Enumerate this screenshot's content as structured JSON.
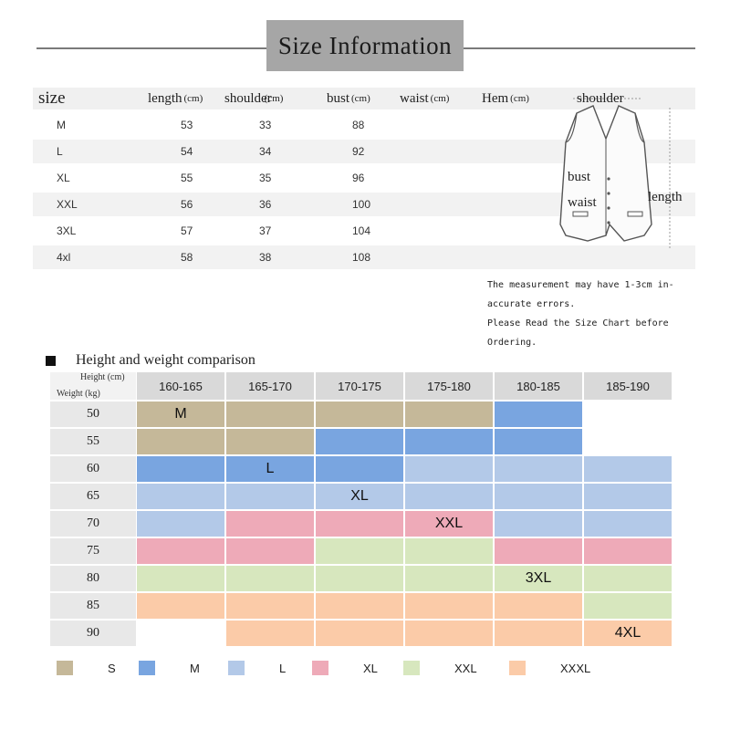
{
  "banner": {
    "title": "Size Information"
  },
  "size_table": {
    "headers": [
      {
        "label": "size",
        "unit": ""
      },
      {
        "label": "length",
        "unit": "(cm)"
      },
      {
        "label": "shoulder",
        "unit": "(cm)"
      },
      {
        "label": "bust",
        "unit": "(cm)"
      },
      {
        "label": "waist",
        "unit": "(cm)"
      },
      {
        "label": "Hem",
        "unit": "(cm)"
      }
    ],
    "rows": [
      {
        "size": "M",
        "length": "53",
        "shoulder": "33",
        "bust": "88"
      },
      {
        "size": "L",
        "length": "54",
        "shoulder": "34",
        "bust": "92"
      },
      {
        "size": "XL",
        "length": "55",
        "shoulder": "35",
        "bust": "96"
      },
      {
        "size": "XXL",
        "length": "56",
        "shoulder": "36",
        "bust": "100"
      },
      {
        "size": "3XL",
        "length": "57",
        "shoulder": "37",
        "bust": "104"
      },
      {
        "size": "4xl",
        "length": "58",
        "shoulder": "38",
        "bust": "108"
      }
    ]
  },
  "diagram": {
    "shoulder": "shoulder",
    "bust": "bust",
    "waist": "waist",
    "length": "length"
  },
  "note": {
    "lines": [
      "The measurement may have 1-3cm in-",
      "accurate errors.",
      "Please Read the Size Chart before",
      "Ordering."
    ]
  },
  "comparison": {
    "title": "Height and weight comparison",
    "height_axis": "Height (cm)",
    "weight_axis": "Weight (kg)",
    "heights": [
      "160-165",
      "165-170",
      "170-175",
      "175-180",
      "180-185",
      "185-190"
    ],
    "weights": [
      "50",
      "55",
      "60",
      "65",
      "70",
      "75",
      "80",
      "85",
      "90"
    ],
    "grid": [
      [
        "S",
        "S",
        "S",
        "S",
        "M",
        ""
      ],
      [
        "S",
        "S",
        "M",
        "M",
        "M",
        ""
      ],
      [
        "M",
        "M",
        "M",
        "L",
        "L",
        "L"
      ],
      [
        "L",
        "L",
        "L",
        "L",
        "L",
        "L"
      ],
      [
        "L",
        "XL",
        "XL",
        "XL",
        "L",
        "L"
      ],
      [
        "XL",
        "XL",
        "XXL",
        "XXL",
        "XL",
        "XL"
      ],
      [
        "XXL",
        "XXL",
        "XXL",
        "XXL",
        "XXL",
        "XXL"
      ],
      [
        "XXXL",
        "XXXL",
        "XXXL",
        "XXXL",
        "XXXL",
        "XXL"
      ],
      [
        "",
        "XXXL",
        "XXXL",
        "XXXL",
        "XXXL",
        "XXXL"
      ]
    ],
    "region_labels": [
      {
        "text": "M",
        "row": 0,
        "col": 0
      },
      {
        "text": "L",
        "row": 2,
        "col": 1
      },
      {
        "text": "XL",
        "row": 3,
        "col": 2
      },
      {
        "text": "XXL",
        "row": 4,
        "col": 3
      },
      {
        "text": "3XL",
        "row": 6,
        "col": 4
      },
      {
        "text": "4XL",
        "row": 8,
        "col": 5
      }
    ],
    "colors": {
      "S": "#c5b899",
      "M": "#79a5e0",
      "L": "#b3c9e8",
      "XL": "#eeaab8",
      "XXL": "#d7e7be",
      "XXXL": "#fbcba8"
    }
  },
  "legend": [
    {
      "key": "S",
      "label": "S"
    },
    {
      "key": "M",
      "label": "M"
    },
    {
      "key": "L",
      "label": "L"
    },
    {
      "key": "XL",
      "label": "XL"
    },
    {
      "key": "XXL",
      "label": "XXL"
    },
    {
      "key": "XXXL",
      "label": "XXXL"
    }
  ]
}
